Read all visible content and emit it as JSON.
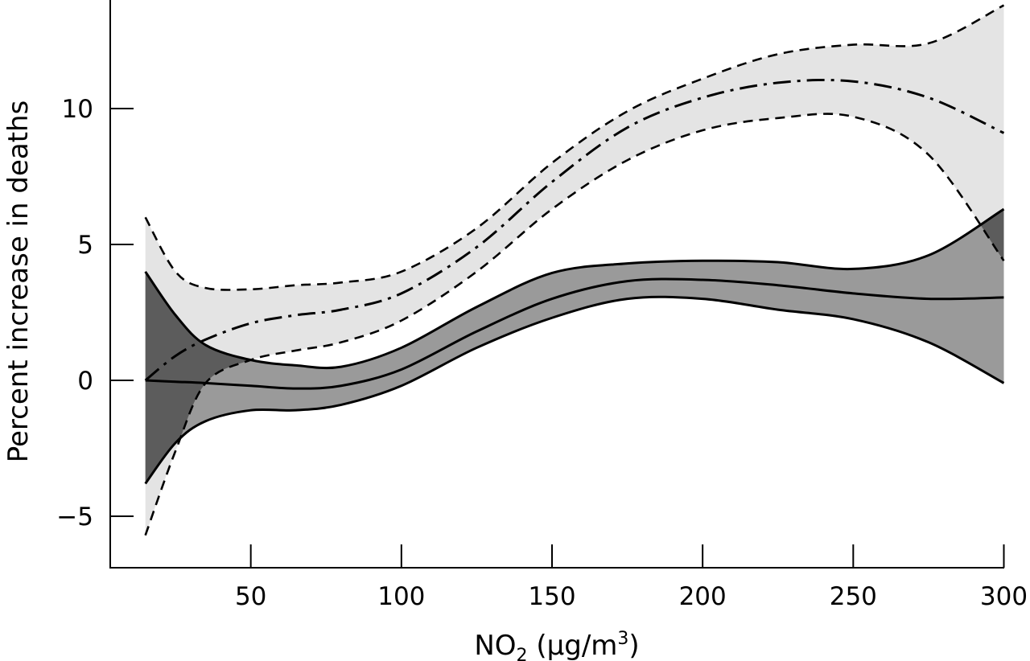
{
  "chart_data": {
    "type": "line",
    "xlabel": "NO2 (µg/m3)",
    "xlabel_parts": {
      "base": "NO",
      "sub": "2",
      "open": " (µg/m",
      "sup": "3",
      "close": ")"
    },
    "ylabel": "Percent increase in deaths",
    "xlim": [
      15,
      300
    ],
    "ylim": [
      -6.8,
      14
    ],
    "x_ticks": [
      50,
      100,
      150,
      200,
      250,
      300
    ],
    "x_tick_labels": [
      "50",
      "100",
      "150",
      "200",
      "250",
      "300"
    ],
    "y_ticks": [
      -5,
      0,
      5,
      10
    ],
    "y_tick_labels": [
      "−5",
      "0",
      "5",
      "10"
    ],
    "x": [
      15,
      25,
      35,
      50,
      65,
      80,
      100,
      125,
      150,
      175,
      200,
      225,
      250,
      275,
      300
    ],
    "series": [
      {
        "line": "solid",
        "band_fill": "#9a9a9a",
        "band_overlap_fill": "#5c5c5c",
        "estimate": [
          0,
          -0.05,
          -0.1,
          -0.2,
          -0.3,
          -0.2,
          0.4,
          1.8,
          3.0,
          3.65,
          3.7,
          3.5,
          3.2,
          3.0,
          3.05
        ],
        "upper": [
          4.0,
          2.4,
          1.3,
          0.75,
          0.55,
          0.5,
          1.2,
          2.7,
          3.95,
          4.3,
          4.4,
          4.35,
          4.1,
          4.6,
          6.3
        ],
        "lower": [
          -3.8,
          -2.3,
          -1.5,
          -1.1,
          -1.1,
          -0.9,
          -0.2,
          1.2,
          2.3,
          3.0,
          3.0,
          2.6,
          2.25,
          1.4,
          -0.1
        ]
      },
      {
        "line": "dash-dot",
        "band_fill": "#e4e4e4",
        "estimate": [
          0,
          0.9,
          1.5,
          2.1,
          2.4,
          2.6,
          3.2,
          4.9,
          7.3,
          9.3,
          10.4,
          10.95,
          11.0,
          10.4,
          9.1
        ],
        "upper": [
          6.0,
          4.0,
          3.4,
          3.35,
          3.5,
          3.6,
          4.0,
          5.6,
          8.0,
          9.9,
          11.1,
          12.0,
          12.35,
          12.4,
          13.8
        ],
        "lower": [
          -5.7,
          -2.6,
          -0.1,
          0.75,
          1.1,
          1.4,
          2.2,
          4.0,
          6.3,
          8.1,
          9.2,
          9.65,
          9.7,
          8.3,
          4.4
        ]
      }
    ]
  }
}
